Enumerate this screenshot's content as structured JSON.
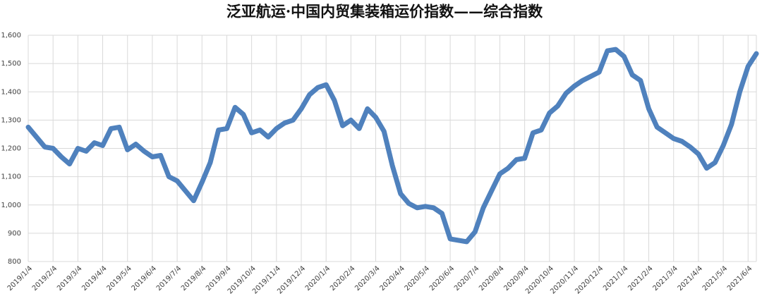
{
  "chart_data": {
    "type": "line",
    "title": "泛亚航运·中国内贸集装箱运价指数——综合指数",
    "categories": [
      "2019/1/4",
      null,
      null,
      "2019/2/4",
      null,
      null,
      "2019/3/4",
      null,
      null,
      "2019/4/4",
      null,
      null,
      "2019/5/4",
      null,
      null,
      "2019/6/4",
      null,
      null,
      "2019/7/4",
      null,
      null,
      "2019/8/4",
      null,
      null,
      "2019/9/4",
      null,
      null,
      "2019/10/4",
      null,
      null,
      "2019/11/4",
      null,
      null,
      "2019/12/4",
      null,
      null,
      "2020/1/4",
      null,
      null,
      "2020/2/4",
      null,
      null,
      "2020/3/4",
      null,
      null,
      "2020/4/4",
      null,
      null,
      "2020/5/4",
      null,
      null,
      "2020/6/4",
      null,
      null,
      "2020/7/4",
      null,
      null,
      "2020/8/4",
      null,
      null,
      "2020/9/4",
      null,
      null,
      "2020/10/4",
      null,
      null,
      "2020/11/4",
      null,
      null,
      "2020/12/4",
      null,
      null,
      "2021/1/4",
      null,
      null,
      "2021/2/4",
      null,
      null,
      "2021/3/4",
      null,
      null,
      "2021/4/4",
      null,
      null,
      "2021/5/4",
      null,
      null,
      "2021/6/4",
      null
    ],
    "values": [
      1275,
      1240,
      1205,
      1200,
      1170,
      1145,
      1200,
      1190,
      1220,
      1210,
      1270,
      1275,
      1195,
      1215,
      1190,
      1170,
      1175,
      1100,
      1085,
      1050,
      1015,
      1080,
      1150,
      1265,
      1270,
      1345,
      1320,
      1255,
      1265,
      1240,
      1270,
      1290,
      1300,
      1340,
      1390,
      1415,
      1425,
      1370,
      1280,
      1300,
      1270,
      1340,
      1310,
      1260,
      1140,
      1040,
      1005,
      990,
      995,
      990,
      970,
      880,
      875,
      870,
      905,
      990,
      1050,
      1110,
      1130,
      1160,
      1165,
      1255,
      1265,
      1325,
      1350,
      1395,
      1420,
      1440,
      1455,
      1470,
      1545,
      1550,
      1525,
      1460,
      1440,
      1340,
      1275,
      1255,
      1235,
      1225,
      1205,
      1180,
      1130,
      1150,
      1210,
      1285,
      1400,
      1490,
      1535
    ],
    "color": "#4f81bd",
    "ylim": [
      800,
      1600
    ],
    "yticks": [
      {
        "value": 800,
        "label": "800"
      },
      {
        "value": 900,
        "label": "900"
      },
      {
        "value": 1000,
        "label": "1,000"
      },
      {
        "value": 1100,
        "label": "1,100"
      },
      {
        "value": 1200,
        "label": "1,200"
      },
      {
        "value": 1300,
        "label": "1,300"
      },
      {
        "value": 1400,
        "label": "1,400"
      },
      {
        "value": 1500,
        "label": "1,500"
      },
      {
        "value": 1600,
        "label": "1,600"
      }
    ],
    "grid": true
  }
}
